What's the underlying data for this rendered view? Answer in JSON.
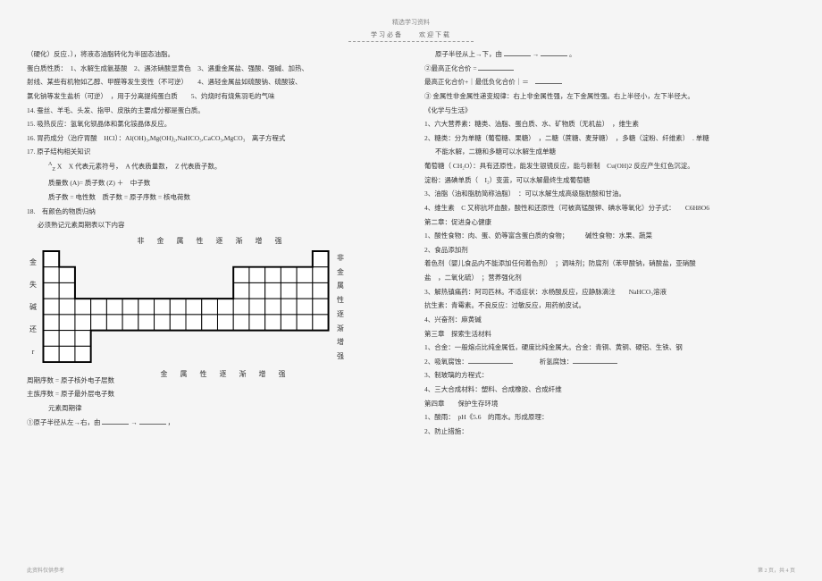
{
  "header": "精选学习资料",
  "subheader": "学习必备　　欢迎下载",
  "left": {
    "l1": "（硬化）反应．），将液态油脂转化为半固态油脂。",
    "l2": "蛋白质性质：　1、水解生成氨基酸　2、遇浓硝酸显黄色　3、遇重金属盐、强酸、强碱、加热、",
    "l3": "射线、某些有机物如乙醇、甲醛等发生变性（不可逆）　　4、遇轻金属盐如硫酸钠、硫酸铵、",
    "l4": "氯化钠等发生盐析（可逆）　，用于分离提纯蛋白质　　5、灼烧时有烧焦羽毛的气味",
    "l5": "14. 蚕丝、羊毛、头发、指甲、皮肤的主要成分都是蛋白质。",
    "l6": "15. 吸热反应：氢氧化钡晶体和氯化铵晶体反应。",
    "l7": "16. 胃药成分（治疗胃酸　HCl）：Al(OH)₃,Mg(OH)₂,NaHCO₃,CaCO₃,MgCO₃　离子方程式",
    "l8": "17. 原子结构相关知识",
    "l9a": "X　X 代表元素符号，　A 代表质量数，　Z 代表质子数。",
    "l9b": "质量数 (A)= 质子数 (Z) ＋　中子数",
    "l9c": "质子数 = 电性数　质子数 = 原子序数 = 核电荷数",
    "l10": "18.　有颜色的物质归纳",
    "l11": "必须熟记元素周期表以下内容",
    "chart_top": "非 金 属 性 逐 渐 增 强",
    "chart_bottom": "金 属 性 逐 渐 增 强",
    "vleft": [
      "金",
      "失",
      "碱",
      "还",
      "r"
    ],
    "vright": [
      "非",
      "金",
      "属",
      "性",
      "逐",
      "渐",
      "增",
      "强"
    ],
    "l12": "周期序数 = 原子核外电子层数",
    "l13": "主族序数 = 原子最外层电子数",
    "l14": "元素周期律",
    "l15a": "①原子半径从左→右，由 ",
    "l15b": " → ",
    "l15c": " ，"
  },
  "right": {
    "r1a": "原子半径从上→下，由 ",
    "r1b": " → ",
    "r1c": " 。",
    "r2a": "②最高正化合价 = ",
    "r3a": "最高正化合价+｜最低负化合价｜＝　",
    "r4": "③ 金属性非金属性递变规律：右上非金属性强，左下金属性强。右上半径小，左下半径大。",
    "r5": "《化学与生活》",
    "r6": "1、六大营养素：糖类、油脂、蛋白质、水、矿物质（无机盐）　，维生素",
    "r7": "2、糖类：分为单糖（葡萄糖、果糖）　，二糖（蔗糖、麦芽糖）　，多糖（淀粉、纤维素）　. 单糖",
    "r7b": "不能水解，二糖和多糖可以水解生成单糖",
    "r8": "葡萄糖（ CH₂O）：具有还原性，能发生银镜反应，能与新制　Cu(OH)2 反应产生红色沉淀。",
    "r9": "淀粉：遇碘单质（　I₂）变蓝，可以水解最终生成葡萄糖",
    "r10": "3、油脂（油和脂肪简称油脂）　：可以水解生成高级脂肪酸和甘油。",
    "r11": "4、维生素　C 又称抗坏血酸，酸性和还原性（可被高锰酸钾、碘水等氧化）分子式：　　C6H8O6",
    "r12": "第二章：促进身心健康",
    "r13": "1、酸性食物：肉、蛋、奶等富含蛋白质的食物；　　　碱性食物：水果、蔬菜",
    "r14": "2、食品添加剂",
    "r15": "着色剂（婴儿食品内不能添加任何着色剂）　；调味剂；防腐剂（苯甲酸钠，硝酸盐，亚硝酸",
    "r15b": "盐　，二氧化硫）　；营养强化剂",
    "r16": "3、解热镇痛药：阿司匹林。不适症状：水杨酸反应，应静脉滴注　　NaHCO₃溶液",
    "r17": "抗生素：青霉素。不良反应：过敏反应，用药前皮试。",
    "r18": "4、兴奋剂：麻黄碱",
    "r19": "第三章　探索生活材料",
    "r20": "1、合金：一般熔点比纯金属低，硬度比纯金属大。合金：青铜、黄铜、硬铝、生铁、钢",
    "r21a": "2、吸氧腐蚀：",
    "r21b": "　　　　析氢腐蚀：",
    "r22": "3、制玻璃的方程式：",
    "r23": "4、三大合成材料：塑料、合成橡胶、合成纤维",
    "r24": "第四章　　保护生存环境",
    "r25": "1、酸雨：　pH《5.6　的雨水。形成原理：",
    "r26": "2、防止措施："
  },
  "footer_left": "此资料仅供参考",
  "footer_right": "第 2 页，共 4 页",
  "chart": {
    "cell": 18,
    "rows": 7,
    "cols": 17,
    "stroke": "#000000",
    "fill": "#ffffff"
  }
}
